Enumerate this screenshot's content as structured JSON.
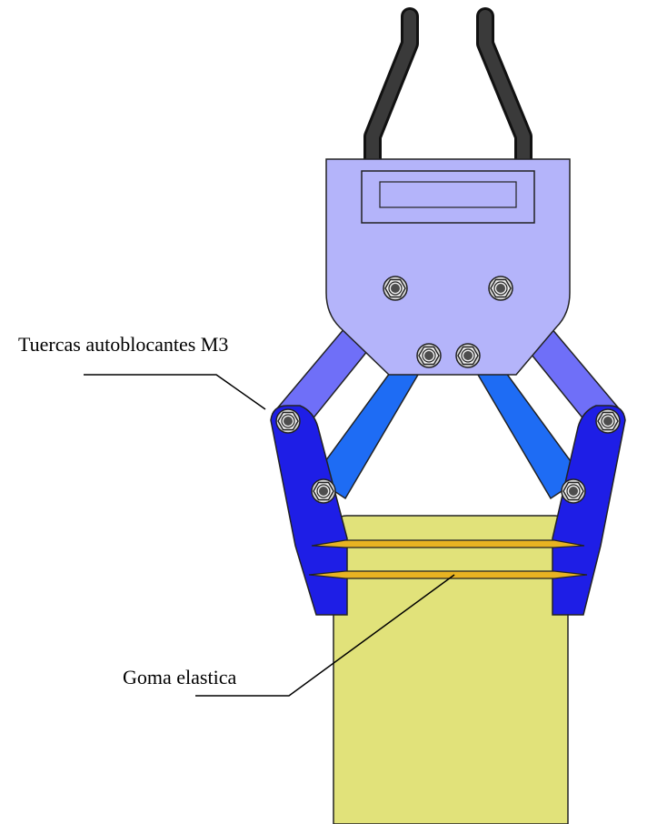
{
  "labels": {
    "nuts": "Tuercas autoblocantes M3",
    "rubber_band": "Goma elastica"
  },
  "colors": {
    "cable": "#1f1f1f",
    "body_plate": "#b4b4fa",
    "outer_link": "#6f6ff8",
    "inner_link": "#1e6cf4",
    "finger": "#1e1ee6",
    "object": "#e1e27a",
    "rubber_band": "#e8b322",
    "nut_outer": "#d9d9d9",
    "nut_core": "#4d4d4d"
  },
  "icons": {
    "nut": "hex-nut-icon",
    "cable": "cable-icon"
  }
}
